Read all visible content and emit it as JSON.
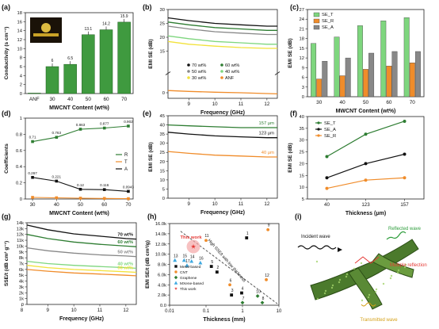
{
  "colors": {
    "green": "#2e7d32",
    "lightgreen": "#7ed67e",
    "black": "#111111",
    "orange": "#f08c2a",
    "gray": "#888888",
    "red": "#e53935"
  },
  "chart_data": [
    {
      "panel": "(a)",
      "type": "bar",
      "xlabel": "MWCNT Content (wt%)",
      "ylabel": "Conductivity (s cm⁻¹)",
      "categories": [
        "ANF",
        "30",
        "40",
        "50",
        "60",
        "70"
      ],
      "values": [
        0.1,
        6.0,
        6.5,
        13.1,
        14.2,
        15.9
      ],
      "value_labels": [
        "",
        "6",
        "6.5",
        "13.1",
        "14.2",
        "15.9"
      ],
      "ylim": [
        0,
        18
      ],
      "yticks": [
        0,
        2,
        4,
        6,
        8,
        10,
        12,
        14,
        16,
        18
      ]
    },
    {
      "panel": "(b)",
      "type": "line",
      "xlabel": "Frequency (GHz)",
      "ylabel": "EMI SE (dB)",
      "xlim": [
        8.2,
        12.4
      ],
      "xticks": [
        9,
        10,
        11,
        12
      ],
      "ylim": [
        -2,
        30
      ],
      "yticks": [
        0,
        15,
        20,
        25,
        30
      ],
      "series": [
        {
          "name": "70 wt%",
          "color": "#111111",
          "x": [
            8.2,
            9,
            10,
            11,
            12,
            12.4
          ],
          "y": [
            27,
            26,
            25,
            24.5,
            24,
            24
          ]
        },
        {
          "name": "60 wt%",
          "color": "#2e7d32",
          "x": [
            8.2,
            9,
            10,
            11,
            12,
            12.4
          ],
          "y": [
            25.5,
            24.5,
            23.5,
            23,
            22.5,
            22.5
          ]
        },
        {
          "name": "50 wt%",
          "color": "#888888",
          "x": [
            8.2,
            9,
            10,
            11,
            12,
            12.4
          ],
          "y": [
            24,
            23,
            22,
            21.5,
            21,
            21
          ]
        },
        {
          "name": "40 wt%",
          "color": "#7ed67e",
          "x": [
            8.2,
            9,
            10,
            11,
            12,
            12.4
          ],
          "y": [
            20.5,
            19.5,
            18.5,
            18,
            17.5,
            17.5
          ]
        },
        {
          "name": "30 wt%",
          "color": "#f2e23a",
          "x": [
            8.2,
            9,
            10,
            11,
            12,
            12.4
          ],
          "y": [
            18.5,
            17.5,
            16.8,
            16.3,
            16,
            16
          ]
        },
        {
          "name": "ANF",
          "color": "#f08c2a",
          "x": [
            8.2,
            9,
            10,
            11,
            12,
            12.4
          ],
          "y": [
            0.8,
            0.5,
            0.2,
            0,
            -0.3,
            -0.4
          ]
        }
      ]
    },
    {
      "panel": "(c)",
      "type": "bar",
      "xlabel": "MWCNT Content (wt%)",
      "ylabel": "EMI SE (dB)",
      "categories": [
        "30",
        "40",
        "50",
        "60",
        "70"
      ],
      "ylim": [
        0,
        27
      ],
      "yticks": [
        0,
        3,
        6,
        9,
        12,
        15,
        18,
        21,
        24,
        27
      ],
      "series": [
        {
          "name": "SE_T",
          "color": "#7ed67e",
          "values": [
            16.5,
            18.5,
            22,
            23.5,
            24.5
          ]
        },
        {
          "name": "SE_R",
          "color": "#f08c2a",
          "values": [
            5.5,
            6.5,
            8.5,
            9.5,
            10.5
          ]
        },
        {
          "name": "SE_A",
          "color": "#888888",
          "values": [
            11,
            12,
            13.5,
            14,
            14
          ]
        }
      ]
    },
    {
      "panel": "(d)",
      "type": "line",
      "xlabel": "MWCNT Content (wt%)",
      "ylabel": "Coefficients",
      "xlim": [
        27,
        72
      ],
      "xticks": [
        30,
        40,
        50,
        60,
        70
      ],
      "ylim": [
        0,
        1.0
      ],
      "yticks": [
        0.0,
        0.2,
        0.4,
        0.6,
        0.8,
        1.0
      ],
      "series": [
        {
          "name": "R",
          "color": "#2e7d32",
          "x": [
            30,
            40,
            50,
            60,
            70
          ],
          "y": [
            0.71,
            0.763,
            0.863,
            0.877,
            0.902
          ],
          "labels": [
            "0.71",
            "0.763",
            "0.863",
            "0.877",
            "0.902"
          ]
        },
        {
          "name": "T",
          "color": "#f08c2a",
          "x": [
            30,
            40,
            50,
            60,
            70
          ],
          "y": [
            0.02,
            0.015,
            0.01,
            0.007,
            0.004
          ],
          "labels": []
        },
        {
          "name": "A",
          "color": "#111111",
          "x": [
            30,
            40,
            50,
            60,
            70
          ],
          "y": [
            0.267,
            0.221,
            0.12,
            0.116,
            0.0943
          ],
          "labels": [
            "0.267",
            "0.221",
            "0.12",
            "0.116",
            "0.0943"
          ]
        }
      ]
    },
    {
      "panel": "(e)",
      "type": "line",
      "xlabel": "Frequency (GHz)",
      "ylabel": "EMI SE (dB)",
      "xlim": [
        8.2,
        12.4
      ],
      "xticks": [
        9,
        10,
        11,
        12
      ],
      "ylim": [
        0,
        45
      ],
      "yticks": [
        0,
        5,
        10,
        15,
        20,
        25,
        30,
        35,
        40,
        45
      ],
      "series": [
        {
          "name": "157 μm",
          "color": "#2e7d32",
          "x": [
            8.2,
            9,
            10,
            11,
            12,
            12.4
          ],
          "y": [
            40,
            39.5,
            39,
            38.5,
            38.5,
            38.5
          ]
        },
        {
          "name": "123 μm",
          "color": "#111111",
          "x": [
            8.2,
            9,
            10,
            11,
            12,
            12.4
          ],
          "y": [
            36,
            35,
            34,
            33.5,
            33,
            33
          ]
        },
        {
          "name": "40 μm",
          "color": "#f08c2a",
          "x": [
            8.2,
            9,
            10,
            11,
            12,
            12.4
          ],
          "y": [
            25.5,
            24.5,
            23.5,
            23,
            22.5,
            22.5
          ]
        }
      ]
    },
    {
      "panel": "(f)",
      "type": "line",
      "xlabel": "Thickness (μm)",
      "ylabel": "EMI SE (dB)",
      "categories": [
        "40",
        "123",
        "157"
      ],
      "ylim": [
        5,
        40
      ],
      "yticks": [
        5,
        10,
        15,
        20,
        25,
        30,
        35,
        40
      ],
      "series": [
        {
          "name": "SE_T",
          "color": "#2e7d32",
          "y": [
            23,
            32.5,
            38
          ]
        },
        {
          "name": "SE_A",
          "color": "#111111",
          "y": [
            14,
            20,
            24
          ]
        },
        {
          "name": "SE_R",
          "color": "#f08c2a",
          "y": [
            9.5,
            13,
            14
          ]
        }
      ]
    },
    {
      "panel": "(g)",
      "type": "line",
      "xlabel": "Frequency (GHz)",
      "ylabel": "SSE/t (dB cm² g⁻¹)",
      "xlim": [
        8.2,
        12.4
      ],
      "xticks": [
        8,
        9,
        10,
        11,
        12
      ],
      "ylim": [
        0,
        14000
      ],
      "yticks": [
        0,
        1000,
        2000,
        3000,
        4000,
        5000,
        6000,
        7000,
        8000,
        9000,
        10000,
        11000,
        12000,
        13000,
        14000
      ],
      "ytick_labels": [
        "0",
        "1k",
        "2k",
        "3k",
        "4k",
        "5k",
        "6k",
        "7k",
        "8k",
        "9k",
        "10k",
        "11k",
        "12k",
        "13k",
        "14k"
      ],
      "series": [
        {
          "name": "70 wt%",
          "color": "#111111",
          "x": [
            8.2,
            9,
            10,
            11,
            12,
            12.4
          ],
          "y": [
            13600,
            12800,
            12100,
            11700,
            11300,
            11200
          ]
        },
        {
          "name": "60 wt%",
          "color": "#2e7d32",
          "x": [
            8.2,
            9,
            10,
            11,
            12,
            12.4
          ],
          "y": [
            12000,
            11300,
            10700,
            10300,
            10000,
            9900
          ]
        },
        {
          "name": "50 wt%",
          "color": "#888888",
          "x": [
            8.2,
            9,
            10,
            11,
            12,
            12.4
          ],
          "y": [
            9700,
            9200,
            8800,
            8500,
            8300,
            8200
          ]
        },
        {
          "name": "40 wt%",
          "color": "#7ed67e",
          "x": [
            8.2,
            9,
            10,
            11,
            12,
            12.4
          ],
          "y": [
            7400,
            7000,
            6700,
            6500,
            6300,
            6200
          ]
        },
        {
          "name": "30 wt%",
          "color": "#f2e23a",
          "x": [
            8.2,
            9,
            10,
            11,
            12,
            12.4
          ],
          "y": [
            6700,
            6300,
            6000,
            5800,
            5600,
            5500
          ]
        },
        {
          "name": "",
          "color": "#f08c2a",
          "x": [
            8.2,
            9,
            10,
            11,
            12,
            12.4
          ],
          "y": [
            6000,
            5700,
            5400,
            5200,
            5000,
            4900
          ]
        }
      ]
    },
    {
      "panel": "(h)",
      "type": "scatter",
      "xlabel": "Thickness (mm)",
      "ylabel": "EMI SE/t (dB cm²/g)",
      "xscale": "log",
      "xlim": [
        0.01,
        10
      ],
      "xticks": [
        0.01,
        0.1,
        1,
        10
      ],
      "ylim": [
        0,
        16000
      ],
      "yticks": [
        0,
        2000,
        4000,
        6000,
        8000,
        10000,
        12000,
        14000,
        16000
      ],
      "ytick_labels": [
        "0.0",
        "2.0k",
        "4.0k",
        "6.0k",
        "8.0k",
        "10.0k",
        "12.0k",
        "14.0k",
        "16.0k"
      ],
      "annotation": "High SSE/t with low thickness",
      "callout": "This work",
      "legend": [
        "Metal-based",
        "CNT",
        "Graphene",
        "MXene-based",
        "This work"
      ],
      "points": [
        {
          "label": "1",
          "cat": "Metal-based",
          "x": 1.3,
          "y": 13200
        },
        {
          "label": "2",
          "cat": "Metal-based",
          "x": 0.2,
          "y": 6500
        },
        {
          "label": "3",
          "cat": "Metal-based",
          "x": 0.5,
          "y": 2000
        },
        {
          "label": "4",
          "cat": "Metal-based",
          "x": 0.95,
          "y": 2400
        },
        {
          "label": "5",
          "cat": "Metal-based",
          "x": 0.14,
          "y": 7600
        },
        {
          "label": "6",
          "cat": "CNT",
          "x": 0.45,
          "y": 4000
        },
        {
          "label": "7",
          "cat": "Graphene",
          "x": 1.0,
          "y": 500
        },
        {
          "label": "8",
          "cat": "Graphene",
          "x": 3.5,
          "y": 500
        },
        {
          "label": "9",
          "cat": "CNT",
          "x": 5.0,
          "y": 14800
        },
        {
          "label": "10",
          "cat": "Graphene",
          "x": 2.6,
          "y": 1800
        },
        {
          "label": "11",
          "cat": "CNT",
          "x": 0.1,
          "y": 12700
        },
        {
          "label": "12",
          "cat": "CNT",
          "x": 4.5,
          "y": 5000
        },
        {
          "label": "13",
          "cat": "MXene-based",
          "x": 0.014,
          "y": 8800
        },
        {
          "label": "14",
          "cat": "MXene-based",
          "x": 0.04,
          "y": 8600
        },
        {
          "label": "15",
          "cat": "MXene-based",
          "x": 0.025,
          "y": 8800
        },
        {
          "label": "16",
          "cat": "MXene-based",
          "x": 0.07,
          "y": 8300
        },
        {
          "label": "17",
          "cat": "MXene-based",
          "x": 0.03,
          "y": 7800
        },
        {
          "label": "",
          "cat": "This work",
          "x": 0.045,
          "y": 11500
        }
      ]
    },
    {
      "panel": "(i)",
      "type": "diagram",
      "labels": [
        "Incident wave",
        "Reflected wave",
        "Multiple reflection",
        "Transmitted wave"
      ]
    }
  ]
}
